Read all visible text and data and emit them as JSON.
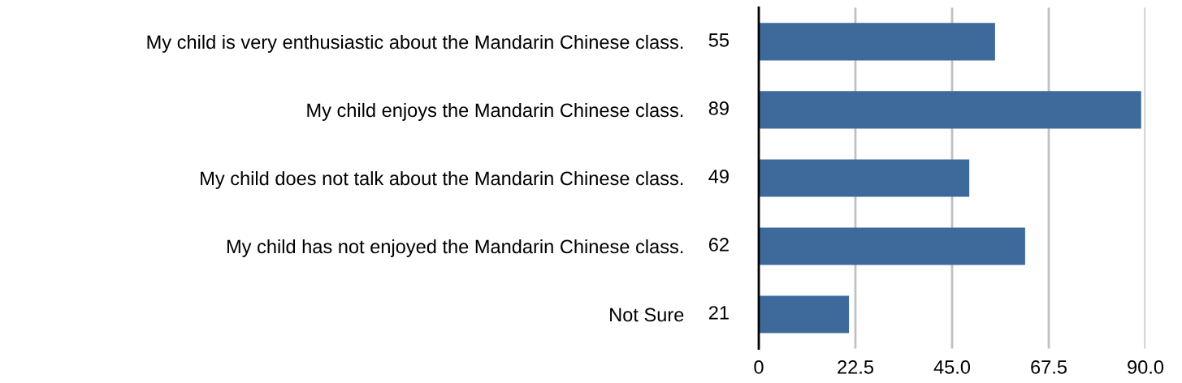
{
  "chart_data": {
    "type": "bar",
    "orientation": "horizontal",
    "categories": [
      "My child is very enthusiastic about the Mandarin Chinese class.",
      "My child enjoys the Mandarin Chinese class.",
      "My child does not talk about the Mandarin Chinese class.",
      "My child has not enjoyed the Mandarin Chinese class.",
      "Not Sure"
    ],
    "values": [
      55,
      89,
      49,
      62,
      21
    ],
    "color": "#3d6a9a",
    "xlim": [
      0,
      90
    ],
    "xticks": [
      0,
      22.5,
      {
        "value": 45,
        "label": "45.0"
      },
      {
        "value": 67.5,
        "label": "67.5"
      },
      {
        "value": 90,
        "label": "90.0"
      }
    ],
    "grid": "x",
    "data_labels": true
  }
}
